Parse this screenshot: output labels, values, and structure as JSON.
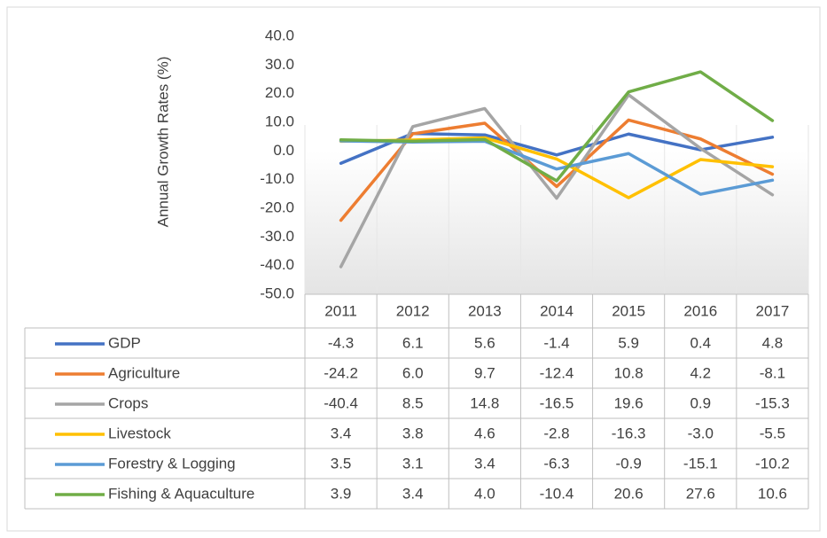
{
  "chart_data": {
    "type": "line",
    "y_label": "Annual Growth Rates (%)",
    "categories": [
      "2011",
      "2012",
      "2013",
      "2014",
      "2015",
      "2016",
      "2017"
    ],
    "ylim": [
      -50,
      40
    ],
    "yticks": [
      {
        "value": -50,
        "label": "-50.0"
      },
      {
        "value": -40,
        "label": "-40.0"
      },
      {
        "value": -30,
        "label": "-30.0"
      },
      {
        "value": -20,
        "label": "-20.0"
      },
      {
        "value": -10,
        "label": "-10.0"
      },
      {
        "value": 0,
        "label": "0.0"
      },
      {
        "value": 10,
        "label": "10.0"
      },
      {
        "value": 20,
        "label": "20.0"
      },
      {
        "value": 30,
        "label": "30.0"
      },
      {
        "value": 40,
        "label": "40.0"
      }
    ],
    "grid": false,
    "series": [
      {
        "name": "GDP",
        "color": "#4472c4",
        "values": [
          -4.3,
          6.1,
          5.6,
          -1.4,
          5.9,
          0.4,
          4.8
        ],
        "value_labels": [
          "-4.3",
          "6.1",
          "5.6",
          "-1.4",
          "5.9",
          "0.4",
          "4.8"
        ]
      },
      {
        "name": "Agriculture",
        "color": "#ed7d31",
        "values": [
          -24.2,
          6.0,
          9.7,
          -12.4,
          10.8,
          4.2,
          -8.1
        ],
        "value_labels": [
          "-24.2",
          "6.0",
          "9.7",
          "-12.4",
          "10.8",
          "4.2",
          "-8.1"
        ]
      },
      {
        "name": "Crops",
        "color": "#a5a5a5",
        "values": [
          -40.4,
          8.5,
          14.8,
          -16.5,
          19.6,
          0.9,
          -15.3
        ],
        "value_labels": [
          "-40.4",
          "8.5",
          "14.8",
          "-16.5",
          "19.6",
          "0.9",
          "-15.3"
        ]
      },
      {
        "name": "Livestock",
        "color": "#ffc000",
        "values": [
          3.4,
          3.8,
          4.6,
          -2.8,
          -16.3,
          -3.0,
          -5.5
        ],
        "value_labels": [
          "3.4",
          "3.8",
          "4.6",
          "-2.8",
          "-16.3",
          "-3.0",
          "-5.5"
        ]
      },
      {
        "name": "Forestry & Logging",
        "color": "#5b9bd5",
        "values": [
          3.5,
          3.1,
          3.4,
          -6.3,
          -0.9,
          -15.1,
          -10.2
        ],
        "value_labels": [
          "3.5",
          "3.1",
          "3.4",
          "-6.3",
          "-0.9",
          "-15.1",
          "-10.2"
        ]
      },
      {
        "name": "Fishing & Aquaculture",
        "color": "#70ad47",
        "values": [
          3.9,
          3.4,
          4.0,
          -10.4,
          20.6,
          27.6,
          10.6
        ],
        "value_labels": [
          "3.9",
          "3.4",
          "4.0",
          "-10.4",
          "20.6",
          "27.6",
          "10.6"
        ]
      }
    ]
  }
}
